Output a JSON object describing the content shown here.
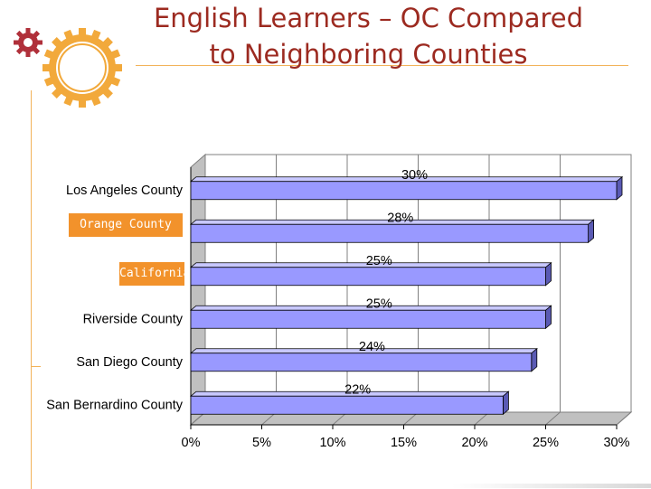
{
  "slide": {
    "title_line1": "English Learners – OC Compared",
    "title_line2": "to Neighboring Counties",
    "highlight_color": "#f2922b",
    "title_color": "#9c2a20",
    "accent_color": "#f2a93b"
  },
  "chart_data": {
    "type": "bar",
    "orientation": "horizontal",
    "style": "3d",
    "categories": [
      "Los Angeles County",
      "Orange County",
      "California",
      "Riverside County",
      "San Diego County",
      "San Bernardino County"
    ],
    "values": [
      30,
      28,
      25,
      25,
      24,
      22
    ],
    "value_labels": [
      "30%",
      "28%",
      "25%",
      "25%",
      "24%",
      "22%"
    ],
    "highlighted_categories": [
      "Orange County",
      "California"
    ],
    "xlim": [
      0,
      30
    ],
    "xticks": [
      "0%",
      "5%",
      "10%",
      "15%",
      "20%",
      "25%",
      "30%"
    ],
    "grid": true,
    "bar_color": "#9999ff",
    "legend": "none"
  }
}
